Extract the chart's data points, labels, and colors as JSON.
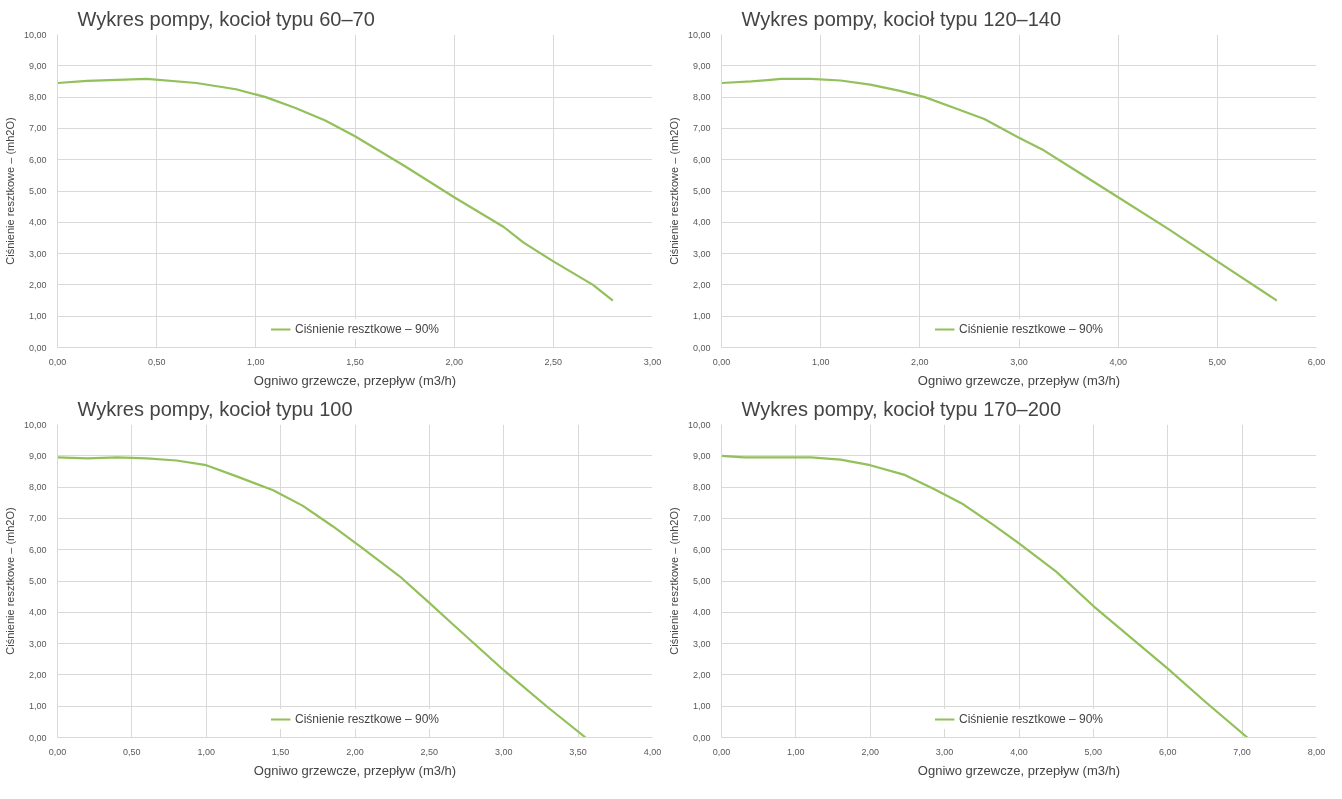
{
  "chart_data": [
    {
      "type": "line",
      "title": "Wykres pompy, kocioł typu 60–70",
      "xlabel": "Ogniwo grzewcze, przepływ (m3/h)",
      "ylabel": "Ciśnienie resztkowe – (mh2O)",
      "grid": true,
      "legend": "bottom",
      "marker": "none",
      "line_style": "solid",
      "xlim": [
        0,
        3
      ],
      "xticks": [
        {
          "value": 0,
          "label": "0,00"
        },
        {
          "value": 0.5,
          "label": "0,50"
        },
        {
          "value": 1,
          "label": "1,00"
        },
        {
          "value": 1.5,
          "label": "1,50"
        },
        {
          "value": 2,
          "label": "2,00"
        },
        {
          "value": 2.5,
          "label": "2,50"
        },
        {
          "value": 3,
          "label": "3,00"
        }
      ],
      "ylim": [
        0,
        10
      ],
      "yticks": [
        {
          "value": 0,
          "label": "0,00"
        },
        {
          "value": 1,
          "label": "1,00"
        },
        {
          "value": 2,
          "label": "2,00"
        },
        {
          "value": 3,
          "label": "3,00"
        },
        {
          "value": 4,
          "label": "4,00"
        },
        {
          "value": 5,
          "label": "5,00"
        },
        {
          "value": 6,
          "label": "6,00"
        },
        {
          "value": 7,
          "label": "7,00"
        },
        {
          "value": 8,
          "label": "8,00"
        },
        {
          "value": 9,
          "label": "9,00"
        },
        {
          "value": 10,
          "label": "10,00"
        }
      ],
      "series": [
        {
          "name": "Ciśnienie resztkowe – 90%",
          "color": "#92c05a",
          "x": [
            0,
            0.15,
            0.45,
            0.7,
            0.9,
            1.05,
            1.2,
            1.35,
            1.5,
            1.75,
            2.0,
            2.25,
            2.35,
            2.5,
            2.7,
            2.8
          ],
          "values": [
            8.45,
            8.52,
            8.58,
            8.45,
            8.25,
            8.0,
            7.65,
            7.25,
            6.75,
            5.8,
            4.8,
            3.85,
            3.35,
            2.75,
            2.0,
            1.5
          ]
        }
      ]
    },
    {
      "type": "line",
      "title": "Wykres pompy, kocioł typu 120–140",
      "xlabel": "Ogniwo grzewcze, przepływ (m3/h)",
      "ylabel": "Ciśnienie resztkowe – (mh2O)",
      "grid": true,
      "legend": "bottom",
      "marker": "none",
      "line_style": "solid",
      "xlim": [
        0,
        6
      ],
      "xticks": [
        {
          "value": 0,
          "label": "0,00"
        },
        {
          "value": 1,
          "label": "1,00"
        },
        {
          "value": 2,
          "label": "2,00"
        },
        {
          "value": 3,
          "label": "3,00"
        },
        {
          "value": 4,
          "label": "4,00"
        },
        {
          "value": 5,
          "label": "5,00"
        },
        {
          "value": 6,
          "label": "6,00"
        }
      ],
      "ylim": [
        0,
        10
      ],
      "yticks": [
        {
          "value": 0,
          "label": "0,00"
        },
        {
          "value": 1,
          "label": "1,00"
        },
        {
          "value": 2,
          "label": "2,00"
        },
        {
          "value": 3,
          "label": "3,00"
        },
        {
          "value": 4,
          "label": "4,00"
        },
        {
          "value": 5,
          "label": "5,00"
        },
        {
          "value": 6,
          "label": "6,00"
        },
        {
          "value": 7,
          "label": "7,00"
        },
        {
          "value": 8,
          "label": "8,00"
        },
        {
          "value": 9,
          "label": "9,00"
        },
        {
          "value": 10,
          "label": "10,00"
        }
      ],
      "series": [
        {
          "name": "Ciśnienie resztkowe – 90%",
          "color": "#92c05a",
          "x": [
            0,
            0.3,
            0.6,
            0.9,
            1.2,
            1.5,
            1.8,
            2.05,
            2.35,
            2.65,
            3.0,
            3.25,
            3.6,
            4.0,
            4.5,
            5.0,
            5.6
          ],
          "values": [
            8.45,
            8.5,
            8.58,
            8.58,
            8.53,
            8.4,
            8.2,
            8.0,
            7.65,
            7.3,
            6.7,
            6.3,
            5.6,
            4.8,
            3.8,
            2.75,
            1.5
          ]
        }
      ]
    },
    {
      "type": "line",
      "title": "Wykres pompy, kocioł typu 100",
      "xlabel": "Ogniwo grzewcze, przepływ (m3/h)",
      "ylabel": "Ciśnienie resztkowe – (mh2O)",
      "grid": true,
      "legend": "bottom",
      "marker": "none",
      "line_style": "solid",
      "xlim": [
        0,
        4
      ],
      "xticks": [
        {
          "value": 0,
          "label": "0,00"
        },
        {
          "value": 0.5,
          "label": "0,50"
        },
        {
          "value": 1,
          "label": "1,00"
        },
        {
          "value": 1.5,
          "label": "1,50"
        },
        {
          "value": 2,
          "label": "2,00"
        },
        {
          "value": 2.5,
          "label": "2,50"
        },
        {
          "value": 3,
          "label": "3,00"
        },
        {
          "value": 3.5,
          "label": "3,50"
        },
        {
          "value": 4,
          "label": "4,00"
        }
      ],
      "ylim": [
        0,
        10
      ],
      "yticks": [
        {
          "value": 0,
          "label": "0,00"
        },
        {
          "value": 1,
          "label": "1,00"
        },
        {
          "value": 2,
          "label": "2,00"
        },
        {
          "value": 3,
          "label": "3,00"
        },
        {
          "value": 4,
          "label": "4,00"
        },
        {
          "value": 5,
          "label": "5,00"
        },
        {
          "value": 6,
          "label": "6,00"
        },
        {
          "value": 7,
          "label": "7,00"
        },
        {
          "value": 8,
          "label": "8,00"
        },
        {
          "value": 9,
          "label": "9,00"
        },
        {
          "value": 10,
          "label": "10,00"
        }
      ],
      "series": [
        {
          "name": "Ciśnienie resztkowe – 90%",
          "color": "#92c05a",
          "x": [
            0,
            0.2,
            0.4,
            0.6,
            0.8,
            1.0,
            1.2,
            1.45,
            1.65,
            1.85,
            2.05,
            2.3,
            2.5,
            2.65,
            3.0,
            3.3,
            3.55
          ],
          "values": [
            8.95,
            8.92,
            8.95,
            8.92,
            8.85,
            8.7,
            8.35,
            7.9,
            7.4,
            6.75,
            6.05,
            5.15,
            4.3,
            3.65,
            2.15,
            0.95,
            0
          ]
        }
      ]
    },
    {
      "type": "line",
      "title": "Wykres pompy, kocioł typu 170–200",
      "xlabel": "Ogniwo grzewcze, przepływ (m3/h)",
      "ylabel": "Ciśnienie resztkowe – (mh2O)",
      "grid": true,
      "legend": "bottom",
      "marker": "none",
      "line_style": "solid",
      "xlim": [
        0,
        8
      ],
      "xticks": [
        {
          "value": 0,
          "label": "0,00"
        },
        {
          "value": 1,
          "label": "1,00"
        },
        {
          "value": 2,
          "label": "2,00"
        },
        {
          "value": 3,
          "label": "3,00"
        },
        {
          "value": 4,
          "label": "4,00"
        },
        {
          "value": 5,
          "label": "5,00"
        },
        {
          "value": 6,
          "label": "6,00"
        },
        {
          "value": 7,
          "label": "7,00"
        },
        {
          "value": 8,
          "label": "8,00"
        }
      ],
      "ylim": [
        0,
        10
      ],
      "yticks": [
        {
          "value": 0,
          "label": "0,00"
        },
        {
          "value": 1,
          "label": "1,00"
        },
        {
          "value": 2,
          "label": "2,00"
        },
        {
          "value": 3,
          "label": "3,00"
        },
        {
          "value": 4,
          "label": "4,00"
        },
        {
          "value": 5,
          "label": "5,00"
        },
        {
          "value": 6,
          "label": "6,00"
        },
        {
          "value": 7,
          "label": "7,00"
        },
        {
          "value": 8,
          "label": "8,00"
        },
        {
          "value": 9,
          "label": "9,00"
        },
        {
          "value": 10,
          "label": "10,00"
        }
      ],
      "series": [
        {
          "name": "Ciśnienie resztkowe – 90%",
          "color": "#92c05a",
          "x": [
            0,
            0.3,
            1.2,
            1.6,
            2.0,
            2.45,
            2.85,
            3.25,
            3.65,
            4.0,
            4.5,
            5.0,
            5.5,
            6.0,
            6.5,
            7.07
          ],
          "values": [
            9.0,
            8.95,
            8.95,
            8.88,
            8.7,
            8.4,
            7.95,
            7.45,
            6.8,
            6.2,
            5.3,
            4.2,
            3.2,
            2.2,
            1.15,
            0
          ]
        }
      ]
    }
  ]
}
